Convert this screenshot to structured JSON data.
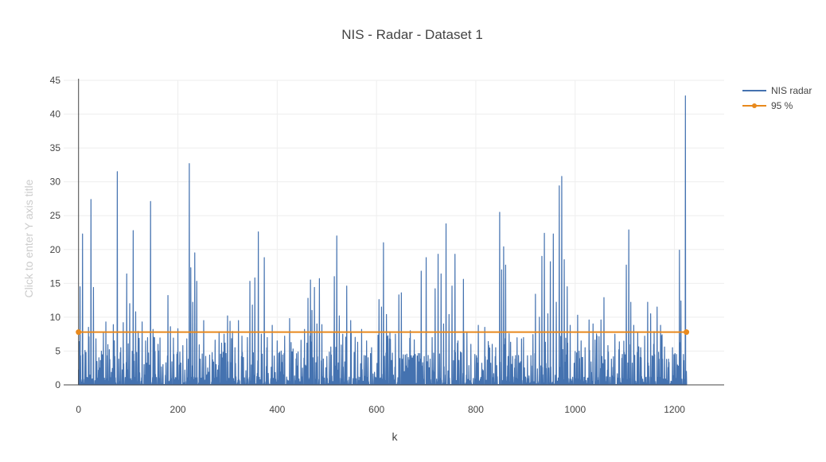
{
  "chart_data": {
    "type": "line",
    "title": "NIS - Radar - Dataset 1",
    "xlabel": "k",
    "ylabel_placeholder": "Click to enter Y axis title",
    "xlim": [
      -30,
      1300
    ],
    "ylim": [
      0,
      45
    ],
    "x_ticks": [
      0,
      200,
      400,
      600,
      800,
      1000,
      1200
    ],
    "y_ticks": [
      0,
      5,
      10,
      15,
      20,
      25,
      30,
      35,
      40,
      45
    ],
    "grid": true,
    "legend_position": "top-right",
    "colors": {
      "nis": "#4472b0",
      "threshold": "#e8891d",
      "grid": "#eeeeee",
      "axis": "#444444"
    },
    "n_points": 1224,
    "series": [
      {
        "name": "NIS radar",
        "peaks": [
          [
            3,
            14.5
          ],
          [
            8,
            22.3
          ],
          [
            15,
            4.8
          ],
          [
            20,
            8.5
          ],
          [
            25,
            27.4
          ],
          [
            30,
            14.4
          ],
          [
            35,
            6.8
          ],
          [
            42,
            2.5
          ],
          [
            50,
            7.8
          ],
          [
            55,
            9.3
          ],
          [
            62,
            5.2
          ],
          [
            70,
            8.9
          ],
          [
            78,
            31.5
          ],
          [
            85,
            5.5
          ],
          [
            90,
            9.2
          ],
          [
            97,
            16.4
          ],
          [
            103,
            12.0
          ],
          [
            110,
            22.8
          ],
          [
            115,
            10.8
          ],
          [
            120,
            7.9
          ],
          [
            128,
            9.3
          ],
          [
            135,
            6.5
          ],
          [
            145,
            27.1
          ],
          [
            150,
            8.2
          ],
          [
            160,
            6.0
          ],
          [
            170,
            3.0
          ],
          [
            180,
            13.2
          ],
          [
            185,
            8.6
          ],
          [
            192,
            4.5
          ],
          [
            200,
            8.3
          ],
          [
            210,
            5.8
          ],
          [
            218,
            6.8
          ],
          [
            223,
            32.7
          ],
          [
            226,
            17.3
          ],
          [
            230,
            12.2
          ],
          [
            234,
            19.5
          ],
          [
            238,
            15.3
          ],
          [
            245,
            3.8
          ],
          [
            252,
            9.5
          ],
          [
            260,
            2.5
          ],
          [
            270,
            3.7
          ],
          [
            280,
            2.2
          ],
          [
            290,
            4.0
          ],
          [
            300,
            10.2
          ],
          [
            305,
            9.4
          ],
          [
            310,
            7.9
          ],
          [
            315,
            5.5
          ],
          [
            322,
            9.5
          ],
          [
            330,
            4.8
          ],
          [
            340,
            7.0
          ],
          [
            345,
            15.3
          ],
          [
            350,
            11.8
          ],
          [
            355,
            15.8
          ],
          [
            362,
            22.6
          ],
          [
            368,
            7.5
          ],
          [
            374,
            18.8
          ],
          [
            380,
            7.0
          ],
          [
            390,
            8.8
          ],
          [
            400,
            6.5
          ],
          [
            408,
            5.0
          ],
          [
            415,
            7.2
          ],
          [
            425,
            9.8
          ],
          [
            432,
            5.3
          ],
          [
            440,
            2.8
          ],
          [
            448,
            6.6
          ],
          [
            455,
            8.2
          ],
          [
            462,
            12.8
          ],
          [
            467,
            15.5
          ],
          [
            470,
            11.0
          ],
          [
            475,
            14.4
          ],
          [
            480,
            9.0
          ],
          [
            485,
            15.7
          ],
          [
            490,
            8.9
          ],
          [
            500,
            4.2
          ],
          [
            508,
            5.6
          ],
          [
            515,
            16.0
          ],
          [
            520,
            22.0
          ],
          [
            525,
            10.2
          ],
          [
            532,
            7.5
          ],
          [
            540,
            14.6
          ],
          [
            548,
            9.5
          ],
          [
            555,
            4.8
          ],
          [
            562,
            6.3
          ],
          [
            570,
            8.2
          ],
          [
            580,
            6.5
          ],
          [
            590,
            5.5
          ],
          [
            605,
            12.6
          ],
          [
            610,
            11.5
          ],
          [
            614,
            21.0
          ],
          [
            620,
            10.4
          ],
          [
            626,
            6.8
          ],
          [
            632,
            4.7
          ],
          [
            638,
            7.5
          ],
          [
            645,
            13.3
          ],
          [
            650,
            13.6
          ],
          [
            660,
            2.8
          ],
          [
            668,
            8.0
          ],
          [
            678,
            4.5
          ],
          [
            690,
            16.8
          ],
          [
            700,
            18.8
          ],
          [
            708,
            3.8
          ],
          [
            712,
            7.0
          ],
          [
            718,
            14.2
          ],
          [
            724,
            19.3
          ],
          [
            730,
            16.4
          ],
          [
            735,
            9.0
          ],
          [
            740,
            23.8
          ],
          [
            746,
            10.4
          ],
          [
            752,
            14.6
          ],
          [
            758,
            19.3
          ],
          [
            764,
            6.5
          ],
          [
            770,
            3.5
          ],
          [
            775,
            15.6
          ],
          [
            782,
            7.8
          ],
          [
            790,
            6.0
          ],
          [
            798,
            4.5
          ],
          [
            805,
            8.8
          ],
          [
            812,
            3.2
          ],
          [
            818,
            8.5
          ],
          [
            825,
            6.4
          ],
          [
            833,
            6.0
          ],
          [
            840,
            5.5
          ],
          [
            848,
            25.5
          ],
          [
            852,
            17.0
          ],
          [
            856,
            20.4
          ],
          [
            860,
            17.7
          ],
          [
            865,
            4.2
          ],
          [
            870,
            6.3
          ],
          [
            878,
            2.5
          ],
          [
            888,
            3.2
          ],
          [
            896,
            7.0
          ],
          [
            904,
            4.3
          ],
          [
            912,
            2.8
          ],
          [
            920,
            13.4
          ],
          [
            928,
            10.0
          ],
          [
            933,
            19.0
          ],
          [
            938,
            22.4
          ],
          [
            945,
            10.5
          ],
          [
            950,
            18.2
          ],
          [
            956,
            22.3
          ],
          [
            962,
            12.2
          ],
          [
            968,
            29.4
          ],
          [
            973,
            30.8
          ],
          [
            978,
            18.5
          ],
          [
            984,
            14.5
          ],
          [
            990,
            8.8
          ],
          [
            998,
            3.2
          ],
          [
            1005,
            10.3
          ],
          [
            1012,
            6.5
          ],
          [
            1020,
            5.5
          ],
          [
            1028,
            9.6
          ],
          [
            1036,
            9.0
          ],
          [
            1044,
            7.2
          ],
          [
            1052,
            9.6
          ],
          [
            1058,
            12.9
          ],
          [
            1066,
            5.8
          ],
          [
            1073,
            3.8
          ],
          [
            1080,
            7.5
          ],
          [
            1088,
            5.2
          ],
          [
            1095,
            4.5
          ],
          [
            1103,
            17.7
          ],
          [
            1108,
            22.9
          ],
          [
            1112,
            12.2
          ],
          [
            1118,
            8.8
          ],
          [
            1125,
            4.8
          ],
          [
            1132,
            5.5
          ],
          [
            1140,
            7.2
          ],
          [
            1146,
            12.2
          ],
          [
            1152,
            10.5
          ],
          [
            1158,
            6.0
          ],
          [
            1165,
            11.5
          ],
          [
            1172,
            8.8
          ],
          [
            1180,
            5.6
          ],
          [
            1188,
            3.8
          ],
          [
            1196,
            5.5
          ],
          [
            1204,
            4.5
          ],
          [
            1210,
            19.9
          ],
          [
            1213,
            12.4
          ],
          [
            1218,
            4.5
          ],
          [
            1222,
            42.7
          ],
          [
            1224,
            2.0
          ]
        ]
      },
      {
        "name": "95 %",
        "x": [
          0,
          1224
        ],
        "values": [
          7.8,
          7.8
        ]
      }
    ]
  }
}
